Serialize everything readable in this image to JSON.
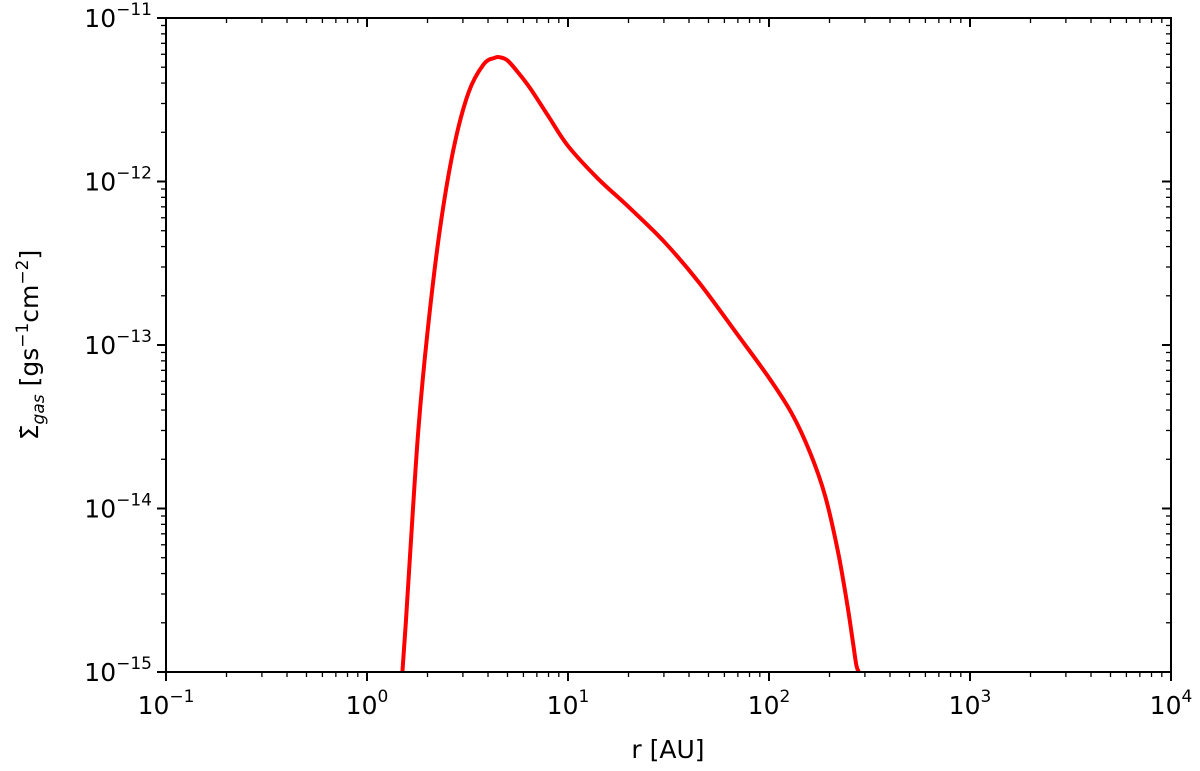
{
  "chart_data": {
    "type": "line",
    "title": "",
    "xlabel": "r [AU]",
    "ylabel": {
      "symbol": "Σ̇",
      "subscript": "gas",
      "units_open": " [gs",
      "units_exp1": "−1",
      "units_mid": "cm",
      "units_exp2": "−2",
      "units_close": "]"
    },
    "xscale": "log",
    "yscale": "log",
    "xlim": [
      0.1,
      10000
    ],
    "ylim": [
      1e-15,
      1e-11
    ],
    "grid": false,
    "legend": "none",
    "x_ticks": [
      {
        "base": "10",
        "exp": "−1",
        "value": 0.1
      },
      {
        "base": "10",
        "exp": "0",
        "value": 1
      },
      {
        "base": "10",
        "exp": "1",
        "value": 10
      },
      {
        "base": "10",
        "exp": "2",
        "value": 100
      },
      {
        "base": "10",
        "exp": "3",
        "value": 1000
      },
      {
        "base": "10",
        "exp": "4",
        "value": 10000
      }
    ],
    "y_ticks": [
      {
        "base": "10",
        "exp": "−15",
        "value": 1e-15
      },
      {
        "base": "10",
        "exp": "−14",
        "value": 1e-14
      },
      {
        "base": "10",
        "exp": "−13",
        "value": 1e-13
      },
      {
        "base": "10",
        "exp": "−12",
        "value": 1e-12
      },
      {
        "base": "10",
        "exp": "−11",
        "value": 1e-11
      }
    ],
    "series": [
      {
        "color": "#ff0000",
        "x": [
          1.5,
          1.56,
          1.65,
          1.8,
          2.0,
          2.3,
          2.7,
          3.2,
          3.8,
          4.3,
          4.6,
          5.0,
          5.6,
          6.5,
          8.0,
          10.0,
          14.0,
          20.0,
          30.0,
          45.0,
          70.0,
          100.0,
          130.0,
          160.0,
          190.0,
          220.0,
          245.0,
          262.0,
          272.0,
          280.0
        ],
        "y": [
          1e-15,
          2e-15,
          6e-15,
          3e-14,
          1.2e-13,
          5e-13,
          1.6e-12,
          3.5e-12,
          5.2e-12,
          5.7e-12,
          5.75e-12,
          5.5e-12,
          4.7e-12,
          3.7e-12,
          2.5e-12,
          1.65e-12,
          1.05e-12,
          7e-13,
          4.3e-13,
          2.4e-13,
          1.15e-13,
          6.3e-14,
          3.8e-14,
          2.2e-14,
          1.2e-14,
          5.5e-15,
          2.6e-15,
          1.5e-15,
          1.1e-15,
          1e-15
        ]
      }
    ]
  }
}
